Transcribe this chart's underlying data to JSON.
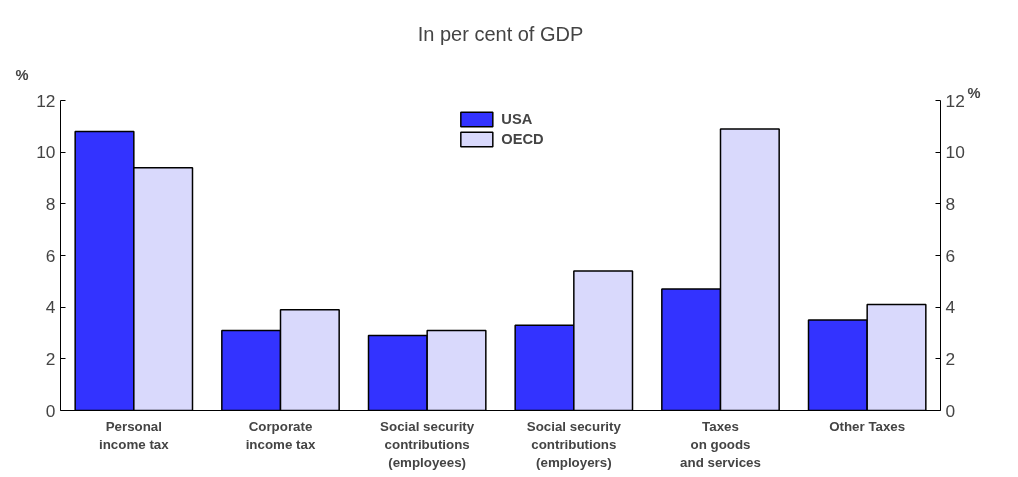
{
  "chart_data": {
    "type": "bar",
    "title": "In per cent of GDP",
    "ylabel": "%",
    "y2label": "%",
    "categories": [
      "Personal\nincome tax",
      "Corporate\nincome tax",
      "Social security\ncontributions\n(employees)",
      "Social security\ncontributions\n(employers)",
      "Taxes\non goods\nand services",
      "Other Taxes"
    ],
    "series": [
      {
        "name": "USA",
        "color": "#3333ff",
        "values": [
          10.8,
          3.1,
          2.9,
          3.3,
          4.7,
          3.5
        ]
      },
      {
        "name": "OECD",
        "color": "#d9d9fc",
        "values": [
          9.4,
          3.9,
          3.1,
          5.4,
          10.9,
          4.1
        ]
      }
    ],
    "ylim": [
      0,
      12
    ],
    "yticks": [
      0,
      2,
      4,
      6,
      8,
      10,
      12
    ],
    "y2lim": [
      0,
      12
    ],
    "y2ticks": [
      0,
      2,
      4,
      6,
      8,
      10,
      12
    ],
    "grid": false,
    "legend": "top"
  }
}
